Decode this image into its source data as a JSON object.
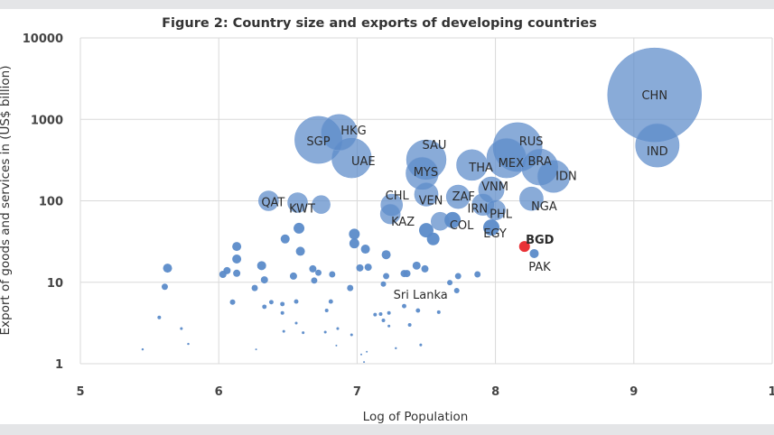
{
  "chart_data": {
    "type": "scatter",
    "subtype": "bubble",
    "title": "Figure 2: Country size and exports of developing countries",
    "xlabel": "Log of Population",
    "ylabel": "Export of goods and services in (US$ billion)",
    "xlim": [
      5,
      10
    ],
    "ylim": [
      1,
      10000
    ],
    "y_scale": "log",
    "x_ticks": [
      "5",
      "6",
      "7",
      "8",
      "9",
      "1"
    ],
    "y_ticks": [
      "1",
      "10",
      "100",
      "1000",
      "10000"
    ],
    "grid": true,
    "legend": "none",
    "colors": {
      "bubble": "#5b8bc9",
      "highlight": "#e8262b",
      "grid": "#d9d9d9"
    },
    "points": [
      {
        "label": "CHN",
        "x": 9.15,
        "y": 2000,
        "size": 2700
      },
      {
        "label": "IND",
        "x": 9.17,
        "y": 480,
        "size": 580
      },
      {
        "label": "RUS",
        "x": 8.16,
        "y": 457,
        "size": 730
      },
      {
        "label": "SGP",
        "x": 6.72,
        "y": 560,
        "size": 680
      },
      {
        "label": "HKG",
        "x": 6.87,
        "y": 690,
        "size": 400
      },
      {
        "label": "UAE",
        "x": 6.96,
        "y": 335,
        "size": 480
      },
      {
        "label": "SAU",
        "x": 7.5,
        "y": 320,
        "size": 480
      },
      {
        "label": "MEX",
        "x": 8.08,
        "y": 335,
        "size": 480
      },
      {
        "label": "BRA",
        "x": 8.32,
        "y": 260,
        "size": 400
      },
      {
        "label": "MYS",
        "x": 7.47,
        "y": 218,
        "size": 320
      },
      {
        "label": "IDN",
        "x": 8.42,
        "y": 200,
        "size": 320
      },
      {
        "label": "THA",
        "x": 7.83,
        "y": 275,
        "size": 290
      },
      {
        "label": "VNM",
        "x": 7.97,
        "y": 137,
        "size": 200
      },
      {
        "label": "ZAF",
        "x": 7.73,
        "y": 112,
        "size": 170
      },
      {
        "label": "NGA",
        "x": 8.26,
        "y": 106,
        "size": 170
      },
      {
        "label": "VEN",
        "x": 7.5,
        "y": 120,
        "size": 170
      },
      {
        "label": "CHL",
        "x": 7.25,
        "y": 89,
        "size": 144
      },
      {
        "label": "IRN",
        "x": 7.91,
        "y": 90,
        "size": 144
      },
      {
        "label": "KAZ",
        "x": 7.24,
        "y": 69,
        "size": 121
      },
      {
        "label": "PHL",
        "x": 8.0,
        "y": 77,
        "size": 121
      },
      {
        "label": "QAT",
        "x": 6.36,
        "y": 100,
        "size": 121
      },
      {
        "label": "KWT",
        "x": 6.57,
        "y": 95,
        "size": 121
      },
      {
        "label": "",
        "x": 6.74,
        "y": 90,
        "size": 100
      },
      {
        "label": "COL",
        "x": 7.69,
        "y": 58,
        "size": 81
      },
      {
        "label": "",
        "x": 7.6,
        "y": 56,
        "size": 100
      },
      {
        "label": "EGY",
        "x": 7.97,
        "y": 47,
        "size": 81
      },
      {
        "label": "",
        "x": 7.5,
        "y": 43.5,
        "size": 64
      },
      {
        "label": "",
        "x": 7.55,
        "y": 34,
        "size": 49
      },
      {
        "label": "BGD",
        "x": 8.21,
        "y": 27.5,
        "size": 36,
        "highlight": true
      },
      {
        "label": "PAK",
        "x": 8.28,
        "y": 22.5,
        "size": 25
      },
      {
        "label": "Sri Lanka",
        "x": 7.72,
        "y": 7.9,
        "size": 9
      },
      {
        "label": "",
        "x": 5.63,
        "y": 14.9,
        "size": 25
      },
      {
        "label": "",
        "x": 5.61,
        "y": 8.8,
        "size": 12
      },
      {
        "label": "",
        "x": 5.57,
        "y": 3.7,
        "size": 4
      },
      {
        "label": "",
        "x": 5.73,
        "y": 2.7,
        "size": 2.3
      },
      {
        "label": "",
        "x": 5.78,
        "y": 1.75,
        "size": 1.5
      },
      {
        "label": "",
        "x": 5.45,
        "y": 1.5,
        "size": 1.5
      },
      {
        "label": "",
        "x": 6.13,
        "y": 27.5,
        "size": 25
      },
      {
        "label": "",
        "x": 6.13,
        "y": 19.3,
        "size": 25
      },
      {
        "label": "",
        "x": 6.06,
        "y": 13.9,
        "size": 16
      },
      {
        "label": "",
        "x": 6.03,
        "y": 12.5,
        "size": 16
      },
      {
        "label": "",
        "x": 6.13,
        "y": 12.9,
        "size": 16
      },
      {
        "label": "",
        "x": 6.31,
        "y": 16,
        "size": 25
      },
      {
        "label": "",
        "x": 6.33,
        "y": 10.7,
        "size": 16
      },
      {
        "label": "",
        "x": 6.26,
        "y": 8.5,
        "size": 12
      },
      {
        "label": "",
        "x": 6.1,
        "y": 5.7,
        "size": 9
      },
      {
        "label": "",
        "x": 6.33,
        "y": 5,
        "size": 6
      },
      {
        "label": "",
        "x": 6.27,
        "y": 1.5,
        "size": 1
      },
      {
        "label": "",
        "x": 6.48,
        "y": 34,
        "size": 25
      },
      {
        "label": "",
        "x": 6.58,
        "y": 46,
        "size": 36
      },
      {
        "label": "",
        "x": 6.59,
        "y": 24,
        "size": 25
      },
      {
        "label": "",
        "x": 6.54,
        "y": 11.9,
        "size": 16
      },
      {
        "label": "",
        "x": 6.68,
        "y": 14.6,
        "size": 16
      },
      {
        "label": "",
        "x": 6.72,
        "y": 13.1,
        "size": 12
      },
      {
        "label": "",
        "x": 6.69,
        "y": 10.5,
        "size": 12
      },
      {
        "label": "",
        "x": 6.82,
        "y": 12.5,
        "size": 12
      },
      {
        "label": "",
        "x": 6.95,
        "y": 8.5,
        "size": 12
      },
      {
        "label": "",
        "x": 6.98,
        "y": 39,
        "size": 36
      },
      {
        "label": "",
        "x": 6.98,
        "y": 30,
        "size": 30
      },
      {
        "label": "",
        "x": 7.06,
        "y": 25.5,
        "size": 25
      },
      {
        "label": "",
        "x": 7.21,
        "y": 21.8,
        "size": 25
      },
      {
        "label": "",
        "x": 7.02,
        "y": 15,
        "size": 16
      },
      {
        "label": "",
        "x": 7.08,
        "y": 15.3,
        "size": 16
      },
      {
        "label": "",
        "x": 7.21,
        "y": 11.9,
        "size": 12
      },
      {
        "label": "",
        "x": 7.19,
        "y": 9.5,
        "size": 9
      },
      {
        "label": "",
        "x": 7.34,
        "y": 12.8,
        "size": 16
      },
      {
        "label": "",
        "x": 7.36,
        "y": 12.8,
        "size": 16
      },
      {
        "label": "",
        "x": 7.43,
        "y": 16,
        "size": 20
      },
      {
        "label": "",
        "x": 7.49,
        "y": 14.6,
        "size": 16
      },
      {
        "label": "",
        "x": 7.73,
        "y": 11.9,
        "size": 12
      },
      {
        "label": "",
        "x": 7.87,
        "y": 12.5,
        "size": 12
      },
      {
        "label": "",
        "x": 7.67,
        "y": 9.9,
        "size": 9
      },
      {
        "label": "",
        "x": 7.34,
        "y": 5.1,
        "size": 6
      },
      {
        "label": "",
        "x": 7.44,
        "y": 4.5,
        "size": 6
      },
      {
        "label": "",
        "x": 7.59,
        "y": 4.3,
        "size": 4
      },
      {
        "label": "",
        "x": 7.23,
        "y": 4.2,
        "size": 4
      },
      {
        "label": "",
        "x": 7.13,
        "y": 4.0,
        "size": 4
      },
      {
        "label": "",
        "x": 7.17,
        "y": 4.07,
        "size": 4
      },
      {
        "label": "",
        "x": 7.19,
        "y": 3.4,
        "size": 4
      },
      {
        "label": "",
        "x": 7.23,
        "y": 2.9,
        "size": 2.3
      },
      {
        "label": "",
        "x": 7.38,
        "y": 3.0,
        "size": 4
      },
      {
        "label": "",
        "x": 7.46,
        "y": 1.7,
        "size": 2.3
      },
      {
        "label": "",
        "x": 7.28,
        "y": 1.55,
        "size": 1.5
      },
      {
        "label": "",
        "x": 6.96,
        "y": 2.26,
        "size": 2.3
      },
      {
        "label": "",
        "x": 7.07,
        "y": 1.4,
        "size": 1
      },
      {
        "label": "",
        "x": 7.05,
        "y": 1.05,
        "size": 1
      },
      {
        "label": "",
        "x": 7.03,
        "y": 1.3,
        "size": 1
      },
      {
        "label": "",
        "x": 6.85,
        "y": 1.67,
        "size": 1
      },
      {
        "label": "",
        "x": 6.86,
        "y": 2.7,
        "size": 2.3
      },
      {
        "label": "",
        "x": 6.77,
        "y": 2.44,
        "size": 2.3
      },
      {
        "label": "",
        "x": 6.81,
        "y": 5.8,
        "size": 6
      },
      {
        "label": "",
        "x": 6.78,
        "y": 4.5,
        "size": 4
      },
      {
        "label": "",
        "x": 6.61,
        "y": 2.4,
        "size": 2.3
      },
      {
        "label": "",
        "x": 6.56,
        "y": 5.8,
        "size": 6
      },
      {
        "label": "",
        "x": 6.56,
        "y": 3.15,
        "size": 2.3
      },
      {
        "label": "",
        "x": 6.47,
        "y": 2.5,
        "size": 2.3
      },
      {
        "label": "",
        "x": 6.46,
        "y": 5.4,
        "size": 6
      },
      {
        "label": "",
        "x": 6.46,
        "y": 4.2,
        "size": 4
      },
      {
        "label": "",
        "x": 6.38,
        "y": 5.7,
        "size": 6
      }
    ]
  }
}
